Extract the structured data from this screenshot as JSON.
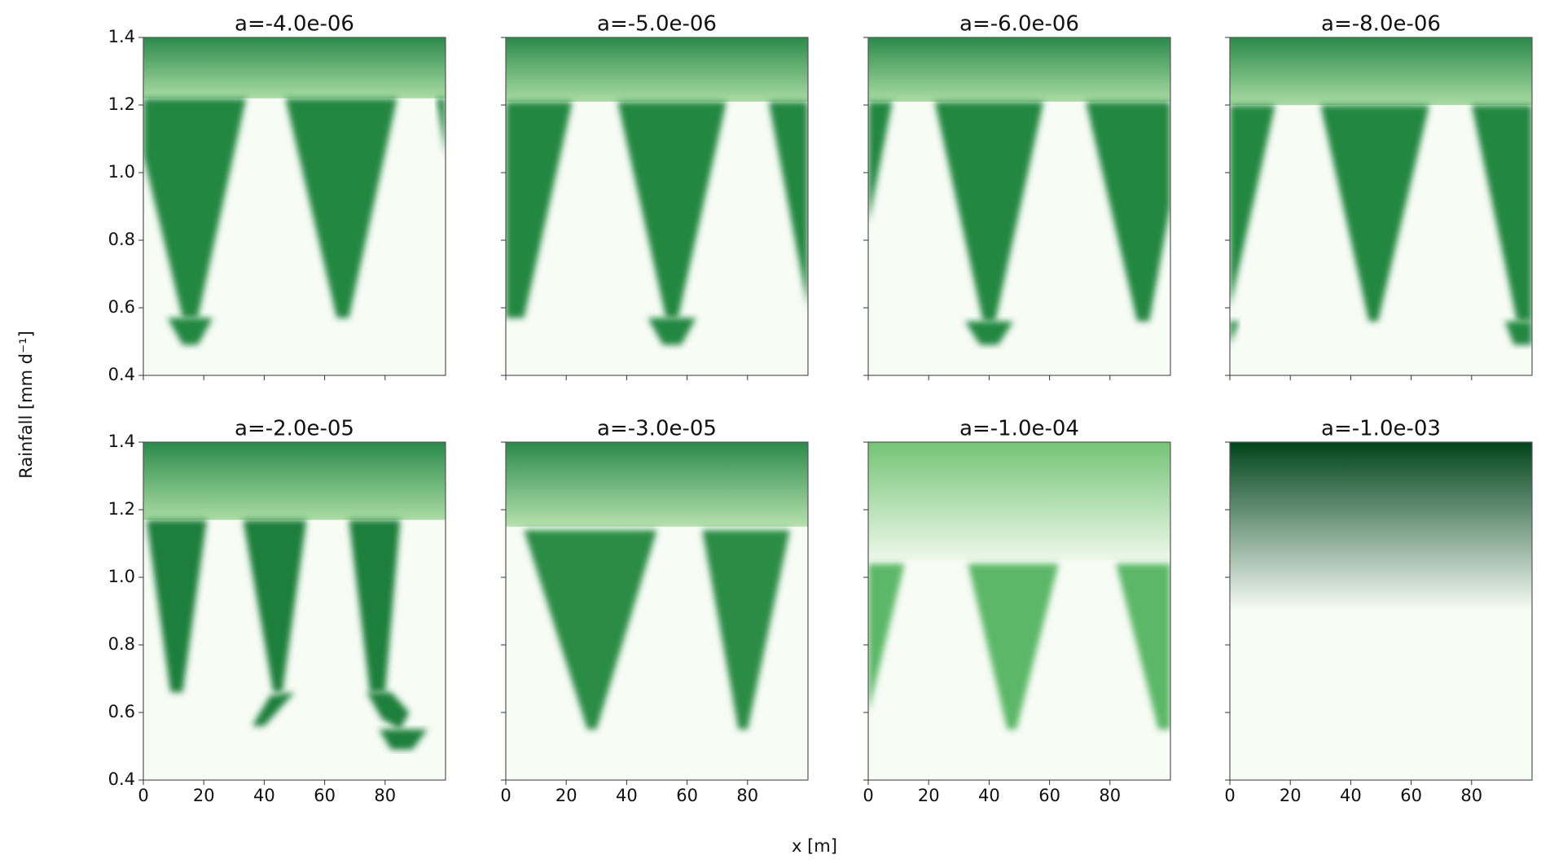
{
  "xlabel": "x [m]",
  "ylabel": "Rainfall [mm d⁻¹]",
  "chart_data": [
    {
      "type": "heatmap",
      "title": "a=-4.0e-06",
      "xlim": [
        0,
        100
      ],
      "ylim": [
        0.4,
        1.4
      ],
      "xticks": [
        0,
        20,
        40,
        60,
        80
      ],
      "yticks": [
        0.4,
        0.6,
        0.8,
        {
          "value": 1,
          "label": "1.0"
        },
        1.2,
        1.4
      ],
      "boundary": 1.22,
      "band_colors": [
        "#2a8a4a",
        "#aadcA3"
      ],
      "region_color": "#22873f",
      "regions": [
        [
          [
            0,
            1.22
          ],
          [
            34,
            1.22
          ],
          [
            18,
            0.57
          ],
          [
            13,
            0.57
          ],
          [
            0,
            1.05
          ]
        ],
        [
          [
            8,
            0.57
          ],
          [
            23,
            0.57
          ],
          [
            18,
            0.49
          ],
          [
            13,
            0.49
          ]
        ],
        [
          [
            47,
            1.22
          ],
          [
            84,
            1.22
          ],
          [
            68,
            0.57
          ],
          [
            64,
            0.57
          ]
        ],
        [
          [
            97,
            1.22
          ],
          [
            100,
            1.22
          ],
          [
            100,
            1.05
          ]
        ]
      ]
    },
    {
      "type": "heatmap",
      "title": "a=-5.0e-06",
      "xlim": [
        0,
        100
      ],
      "ylim": [
        0.4,
        1.4
      ],
      "xticks": [
        0,
        20,
        40,
        60,
        80
      ],
      "yticks": [
        0.4,
        0.6,
        0.8,
        {
          "value": 1,
          "label": "1.0"
        },
        1.2,
        1.4
      ],
      "boundary": 1.21,
      "band_colors": [
        "#2a8a4a",
        "#aadca3"
      ],
      "region_color": "#22873f",
      "regions": [
        [
          [
            0,
            1.21
          ],
          [
            22,
            1.21
          ],
          [
            6,
            0.57
          ],
          [
            0,
            0.57
          ]
        ],
        [
          [
            37,
            1.21
          ],
          [
            73,
            1.21
          ],
          [
            57,
            0.57
          ],
          [
            53,
            0.57
          ]
        ],
        [
          [
            47,
            0.57
          ],
          [
            63,
            0.57
          ],
          [
            58,
            0.49
          ],
          [
            52,
            0.49
          ]
        ],
        [
          [
            87,
            1.21
          ],
          [
            100,
            1.21
          ],
          [
            100,
            0.6
          ]
        ]
      ]
    },
    {
      "type": "heatmap",
      "title": "a=-6.0e-06",
      "xlim": [
        0,
        100
      ],
      "ylim": [
        0.4,
        1.4
      ],
      "xticks": [
        0,
        20,
        40,
        60,
        80
      ],
      "yticks": [
        0.4,
        0.6,
        0.8,
        {
          "value": 1,
          "label": "1.0"
        },
        1.2,
        1.4
      ],
      "boundary": 1.21,
      "band_colors": [
        "#2a8a4a",
        "#aadca3"
      ],
      "region_color": "#22873f",
      "regions": [
        [
          [
            0,
            1.21
          ],
          [
            8,
            1.21
          ],
          [
            0,
            0.85
          ]
        ],
        [
          [
            22,
            1.21
          ],
          [
            58,
            1.21
          ],
          [
            42,
            0.56
          ],
          [
            38,
            0.56
          ]
        ],
        [
          [
            32,
            0.56
          ],
          [
            48,
            0.56
          ],
          [
            43,
            0.49
          ],
          [
            37,
            0.49
          ]
        ],
        [
          [
            72,
            1.21
          ],
          [
            100,
            1.21
          ],
          [
            100,
            0.9
          ],
          [
            93,
            0.56
          ],
          [
            89,
            0.56
          ]
        ]
      ]
    },
    {
      "type": "heatmap",
      "title": "a=-8.0e-06",
      "xlim": [
        0,
        100
      ],
      "ylim": [
        0.4,
        1.4
      ],
      "xticks": [
        0,
        20,
        40,
        60,
        80
      ],
      "yticks": [
        0.4,
        0.6,
        0.8,
        {
          "value": 1,
          "label": "1.0"
        },
        1.2,
        1.4
      ],
      "boundary": 1.2,
      "band_colors": [
        "#2a8a4a",
        "#aadca3"
      ],
      "region_color": "#22873f",
      "regions": [
        [
          [
            0,
            1.2
          ],
          [
            15,
            1.2
          ],
          [
            0,
            0.6
          ]
        ],
        [
          [
            0,
            0.56
          ],
          [
            3,
            0.56
          ],
          [
            0,
            0.49
          ]
        ],
        [
          [
            30,
            1.2
          ],
          [
            66,
            1.2
          ],
          [
            49,
            0.56
          ],
          [
            46,
            0.56
          ]
        ],
        [
          [
            80,
            1.2
          ],
          [
            100,
            1.2
          ],
          [
            100,
            0.56
          ],
          [
            95,
            0.56
          ]
        ],
        [
          [
            91,
            0.56
          ],
          [
            100,
            0.56
          ],
          [
            100,
            0.49
          ],
          [
            94,
            0.49
          ]
        ]
      ]
    },
    {
      "type": "heatmap",
      "title": "a=-2.0e-05",
      "xlim": [
        0,
        100
      ],
      "ylim": [
        0.4,
        1.4
      ],
      "xticks": [
        0,
        20,
        40,
        60,
        80
      ],
      "yticks": [
        0.4,
        0.6,
        0.8,
        {
          "value": 1,
          "label": "1.0"
        },
        1.2,
        1.4
      ],
      "boundary": 1.17,
      "band_colors": [
        "#2a8a4a",
        "#aadca3"
      ],
      "region_color": "#1f7f3a",
      "regions": [
        [
          [
            1,
            1.17
          ],
          [
            21,
            1.17
          ],
          [
            13,
            0.66
          ],
          [
            9,
            0.66
          ]
        ],
        [
          [
            33,
            1.17
          ],
          [
            54,
            1.17
          ],
          [
            46,
            0.66
          ],
          [
            43,
            0.66
          ]
        ],
        [
          [
            36,
            0.56
          ],
          [
            42,
            0.65
          ],
          [
            50,
            0.66
          ],
          [
            40,
            0.56
          ]
        ],
        [
          [
            68,
            1.17
          ],
          [
            85,
            1.17
          ],
          [
            80,
            0.66
          ],
          [
            75,
            0.66
          ]
        ],
        [
          [
            74,
            0.66
          ],
          [
            82,
            0.66
          ],
          [
            88,
            0.6
          ],
          [
            85,
            0.55
          ],
          [
            79,
            0.58
          ]
        ],
        [
          [
            78,
            0.55
          ],
          [
            94,
            0.55
          ],
          [
            89,
            0.49
          ],
          [
            82,
            0.49
          ]
        ]
      ]
    },
    {
      "type": "heatmap",
      "title": "a=-3.0e-05",
      "xlim": [
        0,
        100
      ],
      "ylim": [
        0.4,
        1.4
      ],
      "xticks": [
        0,
        20,
        40,
        60,
        80
      ],
      "yticks": [
        0.4,
        0.6,
        0.8,
        {
          "value": 1,
          "label": "1.0"
        },
        1.2,
        1.4
      ],
      "boundary": 1.15,
      "band_colors": [
        "#2a8a4a",
        "#b5e1ad"
      ],
      "region_color": "#2a8c45",
      "regions": [
        [
          [
            6,
            1.14
          ],
          [
            50,
            1.14
          ],
          [
            30,
            0.55
          ],
          [
            27,
            0.55
          ]
        ],
        [
          [
            65,
            1.14
          ],
          [
            94,
            1.14
          ],
          [
            80,
            0.55
          ],
          [
            77,
            0.55
          ]
        ]
      ]
    },
    {
      "type": "heatmap",
      "title": "a=-1.0e-04",
      "xlim": [
        0,
        100
      ],
      "ylim": [
        0.4,
        1.4
      ],
      "xticks": [
        0,
        20,
        40,
        60,
        80
      ],
      "yticks": [
        0.4,
        0.6,
        0.8,
        {
          "value": 1,
          "label": "1.0"
        },
        1.2,
        1.4
      ],
      "boundary": 1.05,
      "band_colors": [
        "#74c476",
        "#eef8ea"
      ],
      "region_color": "#5cb868",
      "regions": [
        [
          [
            0,
            1.04
          ],
          [
            12,
            1.04
          ],
          [
            0,
            0.6
          ]
        ],
        [
          [
            33,
            1.04
          ],
          [
            63,
            1.04
          ],
          [
            49,
            0.55
          ],
          [
            46,
            0.55
          ]
        ],
        [
          [
            82,
            1.04
          ],
          [
            100,
            1.04
          ],
          [
            100,
            0.55
          ],
          [
            96,
            0.55
          ]
        ]
      ]
    },
    {
      "type": "heatmap",
      "title": "a=-1.0e-03",
      "xlim": [
        0,
        100
      ],
      "ylim": [
        0.4,
        1.4
      ],
      "xticks": [
        0,
        20,
        40,
        60,
        80
      ],
      "yticks": [
        0.4,
        0.6,
        0.8,
        {
          "value": 1,
          "label": "1.0"
        },
        1.2,
        1.4
      ],
      "boundary": 0.9,
      "band_colors": [
        "#00441b",
        "#f7fcf5"
      ],
      "region_color": "#22873f",
      "regions": []
    }
  ]
}
